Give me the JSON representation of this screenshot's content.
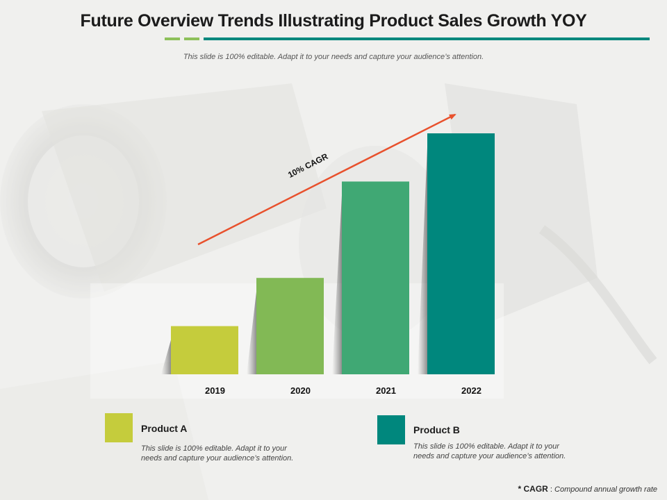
{
  "header": {
    "title": "Future Overview Trends Illustrating Product Sales Growth YOY",
    "subtitle": "This slide is 100% editable. Adapt it to your needs and capture your audience’s attention."
  },
  "colors": {
    "title_rule": "#00877d",
    "accent_dash_1": "#8dc05a",
    "accent_dash_2": "#8dc05a",
    "product_a": "#c5cc3c",
    "product_b": "#00877d",
    "arrow": "#e8512d"
  },
  "chart_data": {
    "type": "bar",
    "categories": [
      "2019",
      "2020",
      "2021",
      "2022"
    ],
    "values": [
      2,
      4,
      8,
      10
    ],
    "bar_colors": [
      "#c5cc3c",
      "#82b955",
      "#40a874",
      "#00877d"
    ],
    "ylim": [
      0,
      10
    ],
    "grid": false,
    "annotation": "10% CAGR"
  },
  "legend": {
    "items": [
      {
        "name": "Product A",
        "color": "#c5cc3c",
        "text": "This slide is 100% editable. Adapt it to your needs and capture your audience’s attention."
      },
      {
        "name": "Product B",
        "color": "#00877d",
        "text": "This slide is 100% editable. Adapt it to your needs and capture your audience’s attention."
      }
    ]
  },
  "footnote": {
    "marker": "* CAGR",
    "separator": ":",
    "text": "Compound annual growth rate"
  }
}
